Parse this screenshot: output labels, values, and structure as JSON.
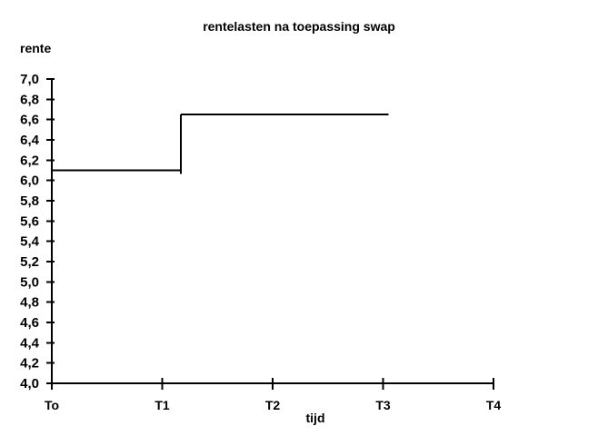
{
  "page": {
    "background": "#ffffff",
    "text_color": "#000000"
  },
  "chart_data": {
    "type": "line",
    "subtype": "step",
    "title": "rentelasten na toepassing swap",
    "xlabel": "tijd",
    "ylabel": "rente",
    "x_tick_labels": [
      "To",
      "T1",
      "T2",
      "T3",
      "T4"
    ],
    "y_tick_labels": [
      "7,0",
      "6,8",
      "6,6",
      "6,4",
      "6,2",
      "6,0",
      "5,8",
      "5,6",
      "5,4",
      "5,2",
      "5,0",
      "4,8",
      "4,6",
      "4,4",
      "4,2",
      "4,0"
    ],
    "ylim": [
      4.0,
      7.0
    ],
    "y_tick_step": 0.2,
    "decimal_separator": ",",
    "grid": false,
    "legend_position": "none",
    "line_color": "#000000",
    "axis_color": "#000000",
    "series": [
      {
        "name": "rentelasten",
        "description": "Horizontal line at ~6,1 from To until just past T1, vertical step up, then horizontal at ~6,65 until just past T3",
        "points": [
          [
            0,
            6.1
          ],
          [
            1.17,
            6.1
          ],
          [
            1.17,
            6.65
          ],
          [
            3.05,
            6.65
          ]
        ]
      }
    ]
  }
}
